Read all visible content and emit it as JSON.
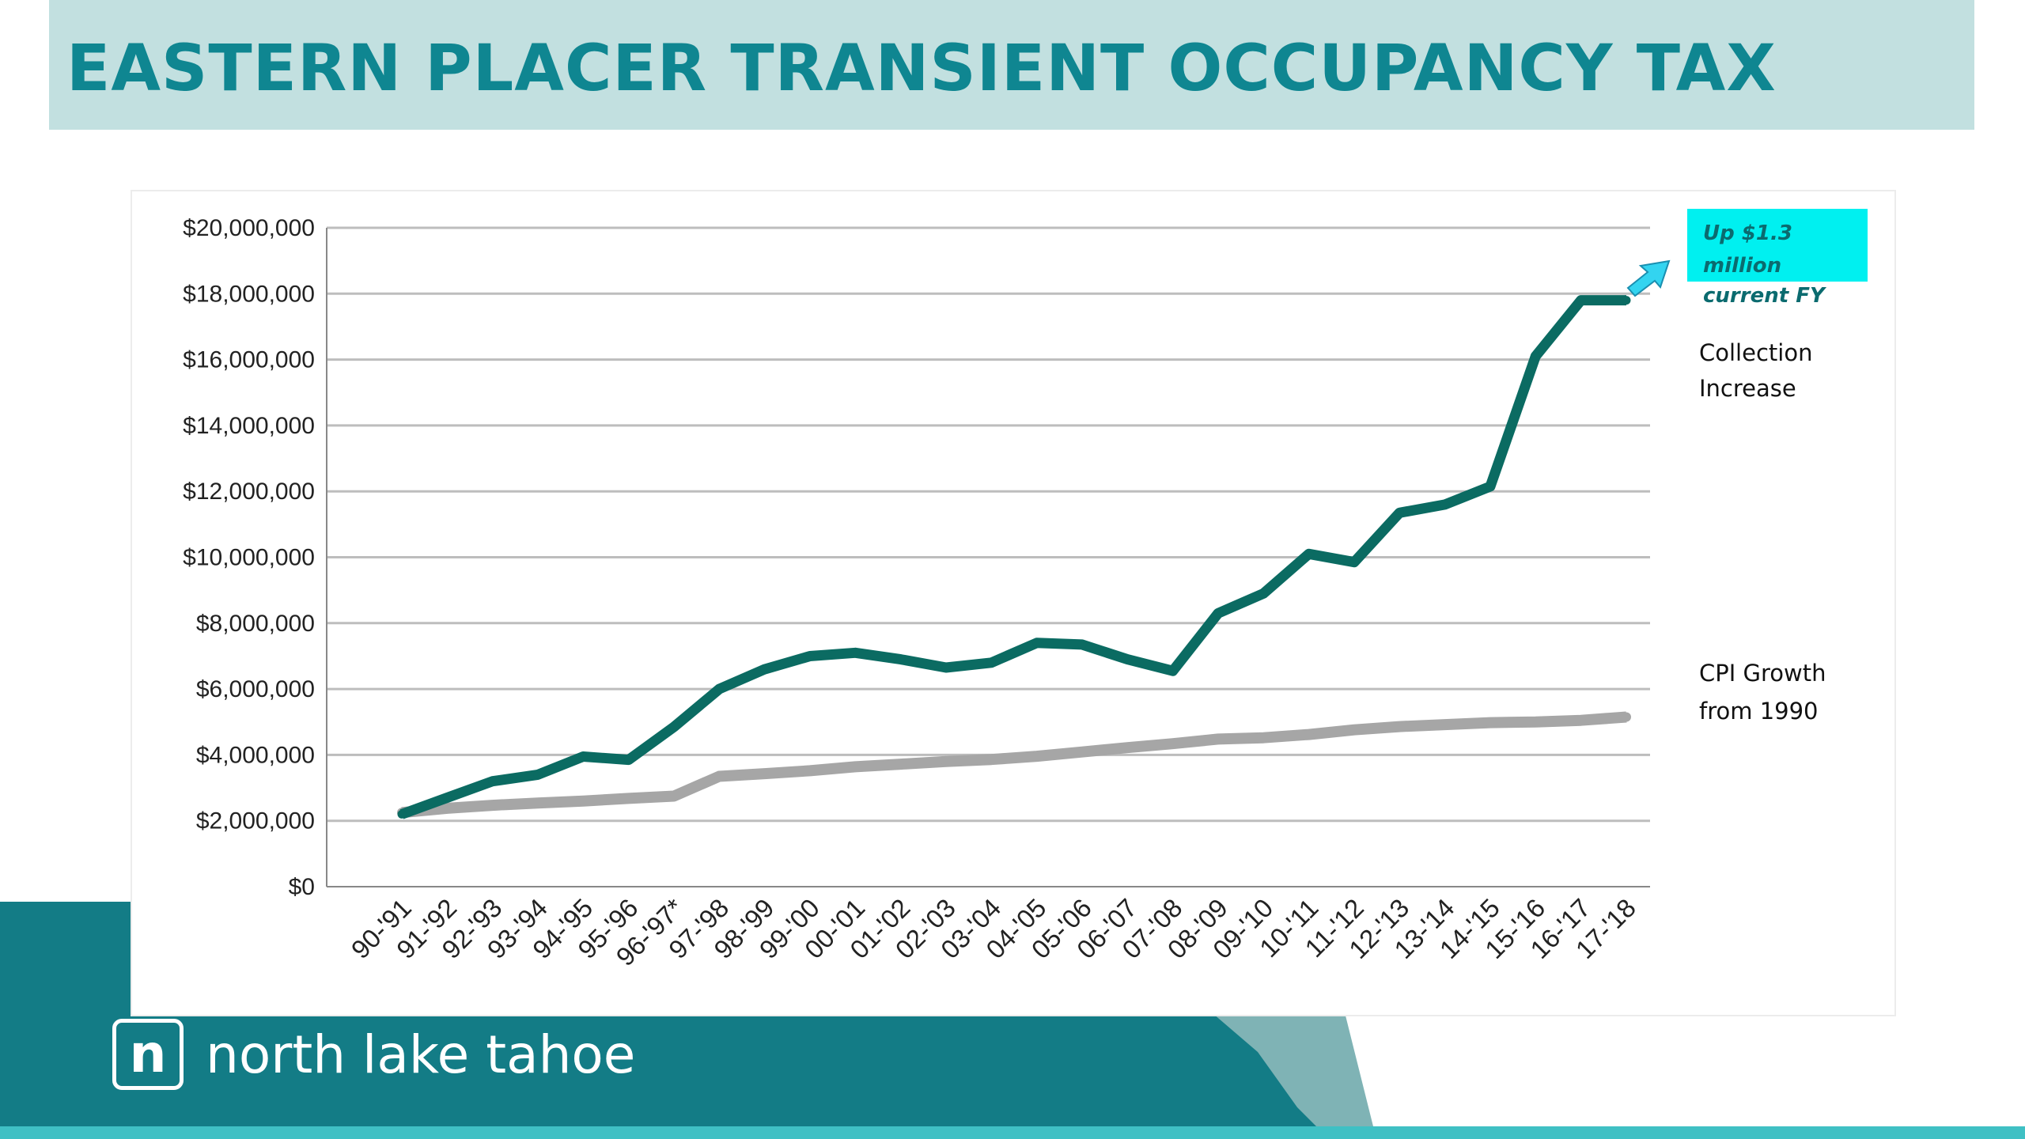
{
  "title": "EASTERN PLACER TRANSIENT OCCUPANCY TAX",
  "brand": {
    "badge_letter": "n",
    "name": "north lake tahoe"
  },
  "colors": {
    "title_band": "#c2e0e0",
    "title_text": "#0f8691",
    "collection_line": "#0b6b62",
    "cpi_line": "#a6a6a6",
    "callout_bg": "#00f0f0",
    "arrow": "#33d4f0",
    "brand_teal": "#137c86"
  },
  "chart_data": {
    "type": "line",
    "categories": [
      "90-'91",
      "91-'92",
      "92-'93",
      "93-'94",
      "94-'95",
      "95-'96",
      "96-'97*",
      "97-'98",
      "98-'99",
      "99-'00",
      "00-'01",
      "01-'02",
      "02-'03",
      "03-'04",
      "04-'05",
      "05-'06",
      "06-'07",
      "07-'08",
      "08-'09",
      "09-'10",
      "10-'11",
      "11-'12",
      "12-'13",
      "13-'14",
      "14-'15",
      "15-'16",
      "16-'17",
      "17-'18"
    ],
    "series": [
      {
        "key": "collection",
        "values": [
          2200000,
          2700000,
          3200000,
          3400000,
          3950000,
          3850000,
          4850000,
          6000000,
          6600000,
          7000000,
          7100000,
          6900000,
          6650000,
          6800000,
          7400000,
          7350000,
          6900000,
          6550000,
          8300000,
          8900000,
          10100000,
          9850000,
          11350000,
          11600000,
          12150000,
          16100000,
          17800000,
          17800000
        ]
      },
      {
        "key": "cpi",
        "values": [
          2250000,
          2380000,
          2470000,
          2540000,
          2600000,
          2680000,
          2750000,
          3350000,
          3430000,
          3520000,
          3640000,
          3720000,
          3800000,
          3860000,
          3960000,
          4090000,
          4220000,
          4340000,
          4480000,
          4520000,
          4620000,
          4760000,
          4860000,
          4920000,
          4980000,
          5000000,
          5050000,
          5150000
        ]
      }
    ],
    "yticks": [
      "$0",
      "$2,000,000",
      "$4,000,000",
      "$6,000,000",
      "$8,000,000",
      "$10,000,000",
      "$12,000,000",
      "$14,000,000",
      "$16,000,000",
      "$18,000,000",
      "$20,000,000"
    ],
    "ylim": [
      0,
      20000000
    ],
    "grid": true,
    "annotations": {
      "callout_lines": [
        "Up $1.3",
        "million",
        "current FY"
      ],
      "collection_lines": [
        "Collection",
        "Increase"
      ],
      "cpi_lines": [
        "CPI Growth",
        "from 1990"
      ]
    }
  }
}
